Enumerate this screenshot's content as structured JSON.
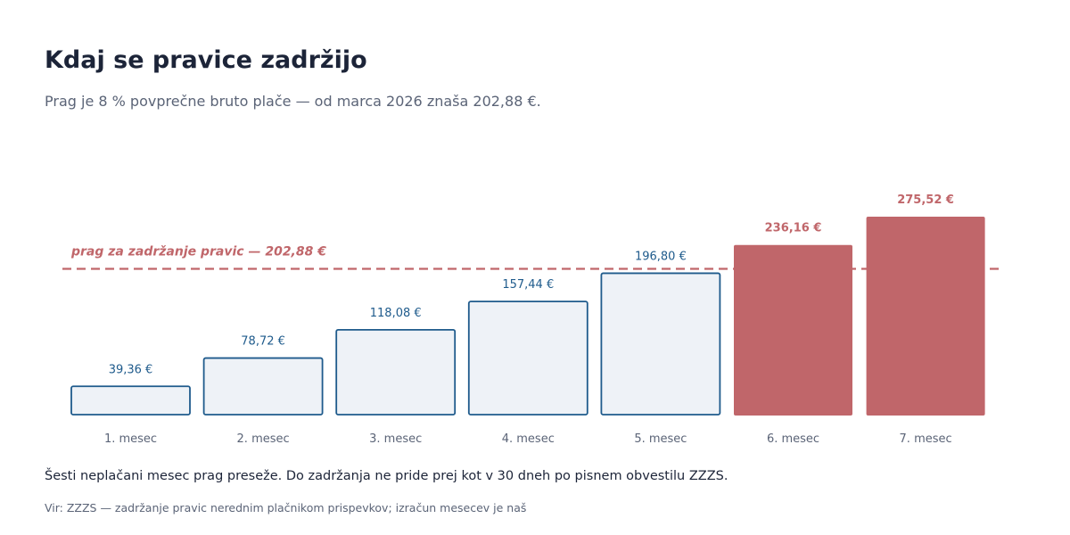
{
  "header": {
    "title": "Kdaj se pravice zadržijo",
    "subtitle": "Prag je 8 % povprečne bruto plače — od marca 2026 znaša 202,88 €."
  },
  "footer": {
    "note": "Šesti neplačani mesec prag preseže. Do zadržanja ne pride prej kot v 30 dneh po pisnem obvestilu ZZZS.",
    "source": "Vir: ZZZS — zadržanje pravic nerednim plačnikom prispevkov; izračun mesecev je naš"
  },
  "chart_data": {
    "type": "bar",
    "title": "Kdaj se pravice zadržijo",
    "xlabel": "",
    "ylabel": "",
    "grid": false,
    "categories": [
      "1. mesec",
      "2. mesec",
      "3. mesec",
      "4. mesec",
      "5. mesec",
      "6. mesec",
      "7. mesec"
    ],
    "values": [
      39.36,
      78.72,
      118.08,
      157.44,
      196.8,
      236.16,
      275.52
    ],
    "value_labels": [
      "39,36 €",
      "78,72 €",
      "118,08 €",
      "157,44 €",
      "196,80 €",
      "236,16 €",
      "275,52 €"
    ],
    "ylim": [
      0,
      275.52
    ],
    "threshold": {
      "value": 202.88,
      "label": "prag za zadržanje pravic — 202,88 €"
    }
  },
  "colors": {
    "below_fill": "#eef2f7",
    "below_stroke": "#1f5b8c",
    "below_label": "#1f5b8c",
    "above_fill": "#c0666a",
    "above_label": "#c0666a",
    "threshold": "#c0666a",
    "axis_label": "#5b6477"
  }
}
